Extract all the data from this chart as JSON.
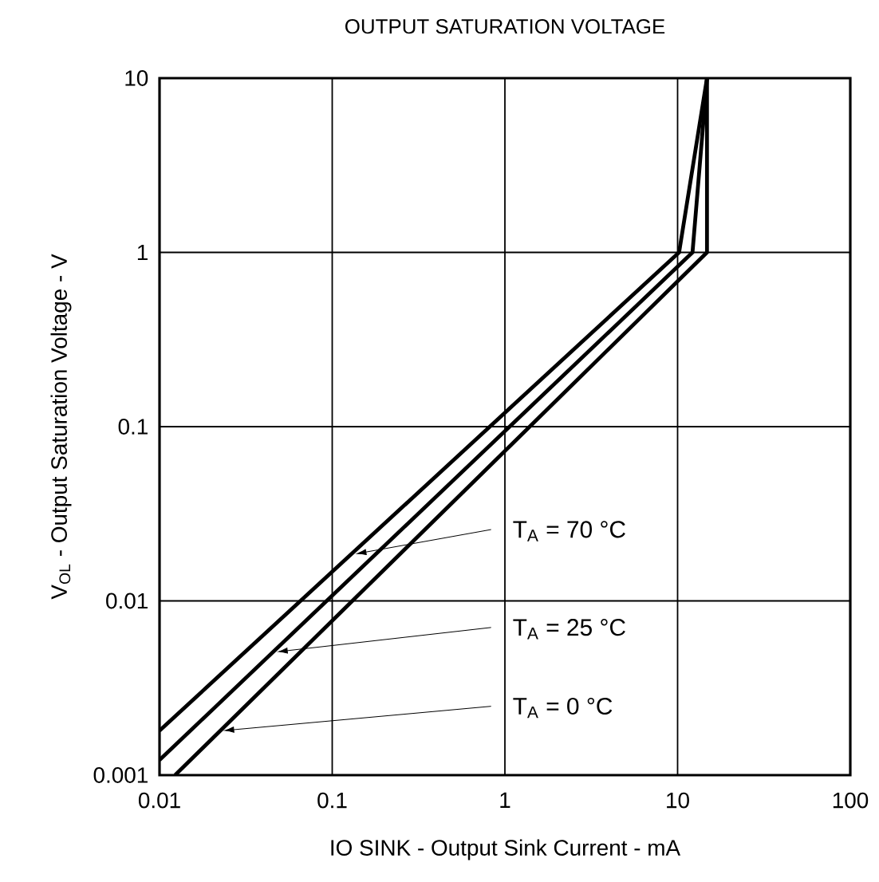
{
  "chart_data": {
    "type": "line",
    "title": "OUTPUT SATURATION VOLTAGE",
    "xlabel": "IO SINK - Output Sink Current - mA",
    "ylabel": "V$_{OL}$ - Output Saturation Voltage - V",
    "log": "xy",
    "grid": true,
    "xlim": [
      0.01,
      100
    ],
    "ylim": [
      0.001,
      10
    ],
    "xticks": [
      0.01,
      0.1,
      1,
      10,
      100
    ],
    "yticks": [
      0.001,
      0.01,
      0.1,
      1,
      10
    ],
    "series": [
      {
        "color": "#000000",
        "x": [
          0.01,
          10.2,
          14.8
        ],
        "values": [
          0.0018,
          1,
          10
        ]
      },
      {
        "color": "#000000",
        "x": [
          0.01,
          12.2,
          14.8
        ],
        "values": [
          0.00122,
          1,
          10
        ]
      },
      {
        "color": "#000000",
        "x": [
          0.0123,
          14.8,
          14.8
        ],
        "values": [
          0.001,
          1,
          10
        ]
      }
    ],
    "annotations": [
      {
        "text": "T$_{A}$ = 70 °C",
        "x": 0.136,
        "y": 0.0186
      },
      {
        "text": "T$_{A}$ = 25 °C",
        "x": 0.0476,
        "y": 0.0051
      },
      {
        "text": "T$_{A}$ = 0 °C",
        "x": 0.0233,
        "y": 0.0018
      }
    ]
  }
}
